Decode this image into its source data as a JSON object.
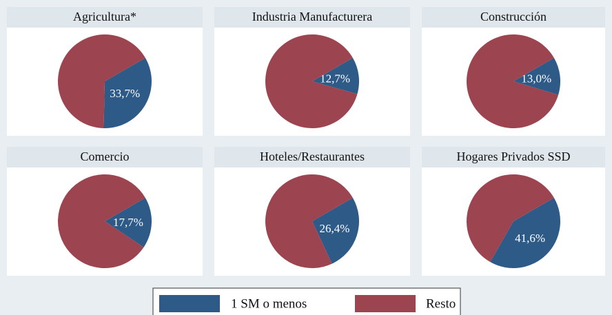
{
  "chart_data": [
    {
      "type": "pie",
      "title": "Agricultura*",
      "categories": [
        "1 SM o menos",
        "Resto"
      ],
      "values": [
        33.7,
        66.3
      ],
      "value_labels": [
        "33,7%",
        null
      ],
      "colors": [
        "#2e5a87",
        "#9c4550"
      ]
    },
    {
      "type": "pie",
      "title": "Industria Manufacturera",
      "categories": [
        "1 SM o menos",
        "Resto"
      ],
      "values": [
        12.7,
        87.3
      ],
      "value_labels": [
        "12,7%",
        null
      ],
      "colors": [
        "#2e5a87",
        "#9c4550"
      ]
    },
    {
      "type": "pie",
      "title": "Construcción",
      "categories": [
        "1 SM o menos",
        "Resto"
      ],
      "values": [
        13.0,
        87.0
      ],
      "value_labels": [
        "13,0%",
        null
      ],
      "colors": [
        "#2e5a87",
        "#9c4550"
      ]
    },
    {
      "type": "pie",
      "title": "Comercio",
      "categories": [
        "1 SM o menos",
        "Resto"
      ],
      "values": [
        17.7,
        82.3
      ],
      "value_labels": [
        "17,7%",
        null
      ],
      "colors": [
        "#2e5a87",
        "#9c4550"
      ]
    },
    {
      "type": "pie",
      "title": "Hoteles/Restaurantes",
      "categories": [
        "1 SM o menos",
        "Resto"
      ],
      "values": [
        26.4,
        73.6
      ],
      "value_labels": [
        "26,4%",
        null
      ],
      "colors": [
        "#2e5a87",
        "#9c4550"
      ]
    },
    {
      "type": "pie",
      "title": "Hogares Privados SSD",
      "categories": [
        "1 SM o menos",
        "Resto"
      ],
      "values": [
        41.6,
        58.4
      ],
      "value_labels": [
        "41,6%",
        null
      ],
      "colors": [
        "#2e5a87",
        "#9c4550"
      ]
    }
  ]
}
